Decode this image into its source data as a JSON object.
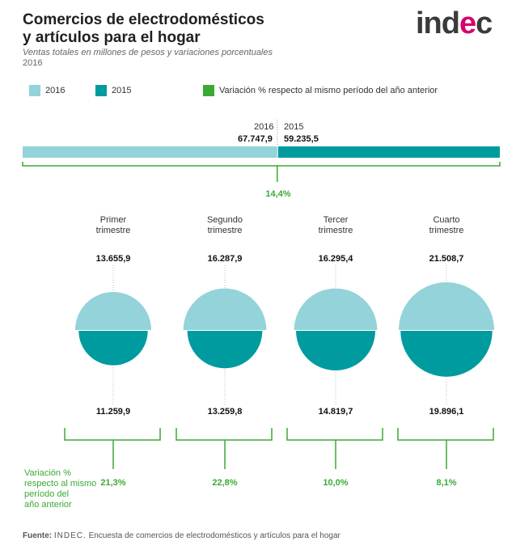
{
  "header": {
    "title_line1": "Comercios de electrodomésticos",
    "title_line2": "y artículos para el hogar",
    "subtitle": "Ventas totales en millones de pesos y variaciones porcentuales",
    "year": "2016",
    "logo_pre": "ind",
    "logo_e": "e",
    "logo_post": "c"
  },
  "legend": {
    "items": [
      {
        "label": "2016",
        "color": "#93d3d9"
      },
      {
        "label": "2015",
        "color": "#009b9e"
      },
      {
        "label": "Variación % respecto al mismo período del año anterior",
        "color": "#3aa935"
      }
    ]
  },
  "colors": {
    "y2016": "#93d3d9",
    "y2015": "#009b9e",
    "variation": "#3aa935"
  },
  "chart_data": {
    "type": "bar",
    "total": {
      "label_2016": "2016",
      "label_2015": "2015",
      "value_2016": 67747.9,
      "value_2015": 59235.5,
      "display_2016": "67.747,9",
      "display_2015": "59.235,5",
      "variation": "14,4%"
    },
    "quarters": [
      {
        "name_l1": "Primer",
        "name_l2": "trimestre",
        "v2016": 13655.9,
        "v2015": 11259.9,
        "d2016": "13.655,9",
        "d2015": "11.259,9",
        "variation": "21,3%"
      },
      {
        "name_l1": "Segundo",
        "name_l2": "trimestre",
        "v2016": 16287.9,
        "v2015": 13259.8,
        "d2016": "16.287,9",
        "d2015": "13.259,8",
        "variation": "22,8%"
      },
      {
        "name_l1": "Tercer",
        "name_l2": "trimestre",
        "v2016": 16295.4,
        "v2015": 14819.7,
        "d2016": "16.295,4",
        "d2015": "14.819,7",
        "variation": "10,0%"
      },
      {
        "name_l1": "Cuarto",
        "name_l2": "trimestre",
        "v2016": 21508.7,
        "v2015": 19896.1,
        "d2016": "21.508,7",
        "d2015": "19.896,1",
        "variation": "8,1%"
      }
    ],
    "variation_label": [
      "Variación %",
      "respecto al mismo",
      "período del",
      "año anterior"
    ]
  },
  "footer": {
    "label": "Fuente:",
    "org": "INDEC.",
    "text": "Encuesta de comercios de electrodomésticos y artículos para el hogar"
  }
}
